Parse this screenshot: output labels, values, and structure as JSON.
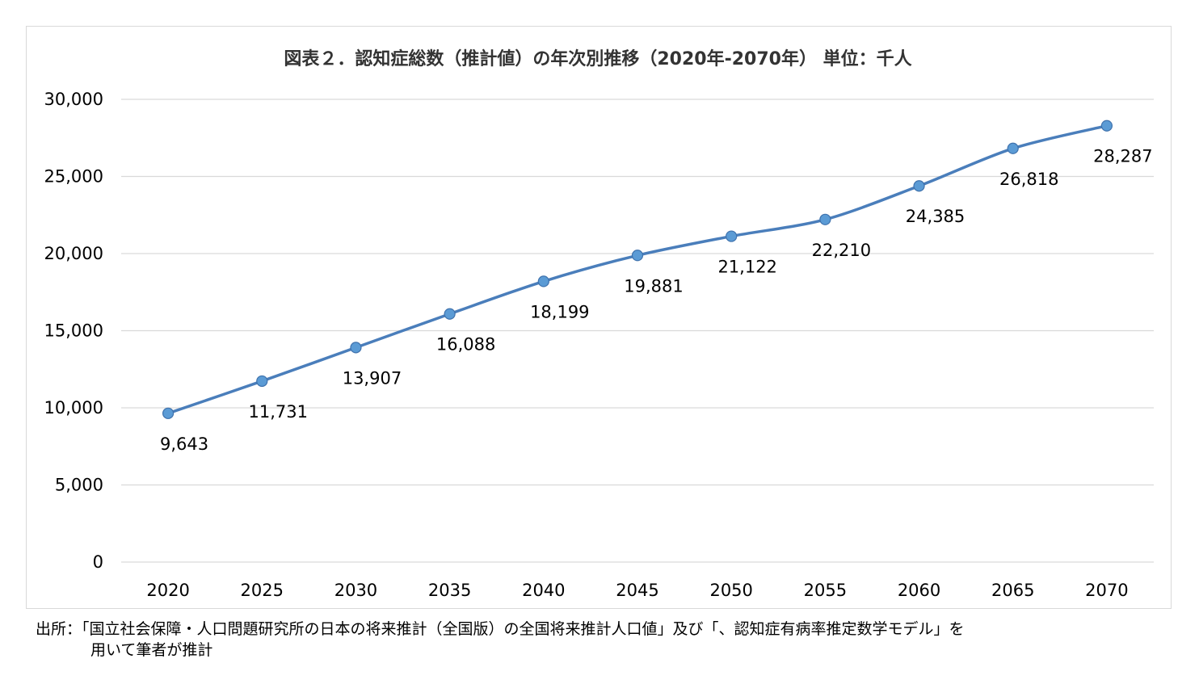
{
  "chart_data": {
    "type": "line",
    "title": "図表２．認知症総数（推計値）の年次別推移（2020年-2070年） 単位：千人",
    "categories": [
      "2020",
      "2025",
      "2030",
      "2035",
      "2040",
      "2045",
      "2050",
      "2055",
      "2060",
      "2065",
      "2070"
    ],
    "series": [
      {
        "values": [
          9643,
          11731,
          13907,
          16088,
          18199,
          19881,
          21122,
          22210,
          24385,
          26818,
          28287
        ],
        "labels": [
          "9,643",
          "11,731",
          "13,907",
          "16,088",
          "18,199",
          "19,881",
          "21,122",
          "22,210",
          "24,385",
          "26,818",
          "28,287"
        ],
        "color": "#4a7ebb",
        "marker_color": "#5b9bd5"
      }
    ],
    "yticks": [
      "0",
      "5,000",
      "10,000",
      "15,000",
      "20,000",
      "25,000",
      "30,000"
    ],
    "ylim": [
      0,
      30000
    ],
    "ystep": 5000,
    "grid": true,
    "legend": "none"
  },
  "source": {
    "line1": "出所：「国立社会保障・人口問題研究所の日本の将来推計（全国版）の全国将来推計人口値」及び「、認知症有病率推定数学モデル」を",
    "line2": "用いて筆者が推計"
  }
}
